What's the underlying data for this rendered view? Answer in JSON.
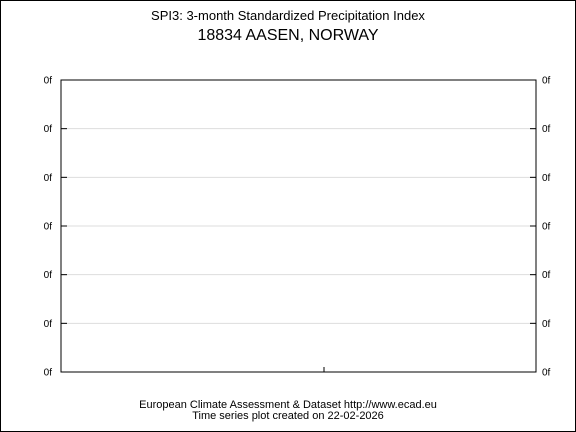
{
  "page": {
    "title": "SPI3: 3-month Standardized Precipitation Index",
    "subtitle": "18834 AASEN, NORWAY",
    "footer_line1": "European Climate Assessment & Dataset  http://www.ecad.eu",
    "footer_line2": "Time series plot created on 22-02-2026"
  },
  "chart_data": {
    "type": "line",
    "title": "SPI3: 3-month Standardized Precipitation Index",
    "subtitle": "18834 AASEN, NORWAY",
    "xlabel": "",
    "ylabel": "",
    "y_tick_labels": [
      "0f",
      "0f",
      "0f",
      "0f",
      "0f",
      "0f",
      "0f"
    ],
    "series": [],
    "grid": true,
    "legend": "none"
  }
}
